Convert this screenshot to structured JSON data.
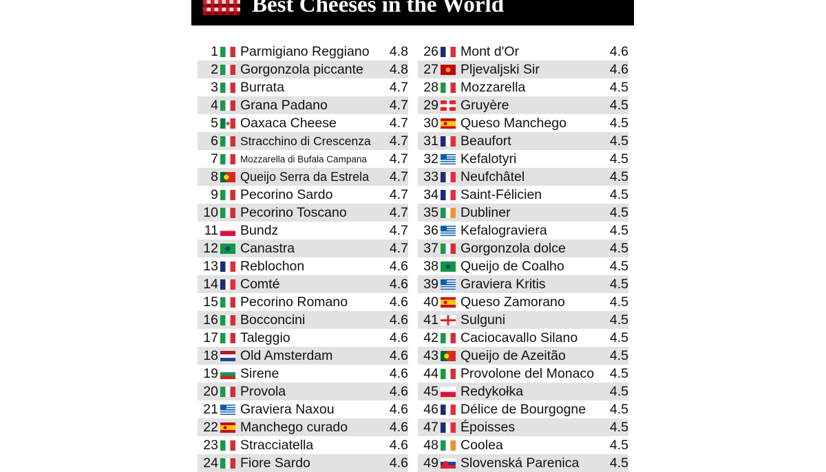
{
  "title": "Best Cheeses in the World",
  "cheeses": [
    {
      "rank": "1",
      "flag": "it",
      "name": "Parmigiano Reggiano",
      "score": "4.8"
    },
    {
      "rank": "2",
      "flag": "it",
      "name": "Gorgonzola piccante",
      "score": "4.8"
    },
    {
      "rank": "3",
      "flag": "it",
      "name": "Burrata",
      "score": "4.7"
    },
    {
      "rank": "4",
      "flag": "it",
      "name": "Grana Padano",
      "score": "4.7"
    },
    {
      "rank": "5",
      "flag": "mx",
      "name": "Oaxaca Cheese",
      "score": "4.7"
    },
    {
      "rank": "6",
      "flag": "it",
      "name": "Stracchino di Crescenza",
      "score": "4.7"
    },
    {
      "rank": "7",
      "flag": "it",
      "name": "Mozzarella di Bufala Campana",
      "score": "4.7"
    },
    {
      "rank": "8",
      "flag": "pt",
      "name": "Queijo Serra da Estrela",
      "score": "4.7"
    },
    {
      "rank": "9",
      "flag": "it",
      "name": "Pecorino Sardo",
      "score": "4.7"
    },
    {
      "rank": "10",
      "flag": "it",
      "name": "Pecorino Toscano",
      "score": "4.7"
    },
    {
      "rank": "11",
      "flag": "pl",
      "name": "Bundz",
      "score": "4.7"
    },
    {
      "rank": "12",
      "flag": "br",
      "name": "Canastra",
      "score": "4.7"
    },
    {
      "rank": "13",
      "flag": "fr",
      "name": "Reblochon",
      "score": "4.6"
    },
    {
      "rank": "14",
      "flag": "fr",
      "name": "Comté",
      "score": "4.6"
    },
    {
      "rank": "15",
      "flag": "it",
      "name": "Pecorino Romano",
      "score": "4.6"
    },
    {
      "rank": "16",
      "flag": "it",
      "name": "Bocconcini",
      "score": "4.6"
    },
    {
      "rank": "17",
      "flag": "it",
      "name": "Taleggio",
      "score": "4.6"
    },
    {
      "rank": "18",
      "flag": "nl",
      "name": "Old Amsterdam",
      "score": "4.6"
    },
    {
      "rank": "19",
      "flag": "bg",
      "name": "Sirene",
      "score": "4.6"
    },
    {
      "rank": "20",
      "flag": "it",
      "name": "Provola",
      "score": "4.6"
    },
    {
      "rank": "21",
      "flag": "gr",
      "name": "Graviera Naxou",
      "score": "4.6"
    },
    {
      "rank": "22",
      "flag": "es",
      "name": "Manchego curado",
      "score": "4.6"
    },
    {
      "rank": "23",
      "flag": "it",
      "name": "Stracciatella",
      "score": "4.6"
    },
    {
      "rank": "24",
      "flag": "it",
      "name": "Fiore Sardo",
      "score": "4.6"
    },
    {
      "rank": "26",
      "flag": "fr",
      "name": "Mont d'Or",
      "score": "4.6"
    },
    {
      "rank": "27",
      "flag": "me",
      "name": "Pljevaljski Sir",
      "score": "4.6"
    },
    {
      "rank": "28",
      "flag": "it",
      "name": "Mozzarella",
      "score": "4.5"
    },
    {
      "rank": "29",
      "flag": "ch",
      "name": "Gruyère",
      "score": "4.5"
    },
    {
      "rank": "30",
      "flag": "es",
      "name": "Queso Manchego",
      "score": "4.5"
    },
    {
      "rank": "31",
      "flag": "fr",
      "name": "Beaufort",
      "score": "4.5"
    },
    {
      "rank": "32",
      "flag": "gr",
      "name": "Kefalotyri",
      "score": "4.5"
    },
    {
      "rank": "33",
      "flag": "fr",
      "name": "Neufchâtel",
      "score": "4.5"
    },
    {
      "rank": "34",
      "flag": "fr",
      "name": "Saint-Félicien",
      "score": "4.5"
    },
    {
      "rank": "35",
      "flag": "ie",
      "name": "Dubliner",
      "score": "4.5"
    },
    {
      "rank": "36",
      "flag": "gr",
      "name": "Kefalograviera",
      "score": "4.5"
    },
    {
      "rank": "37",
      "flag": "it",
      "name": "Gorgonzola dolce",
      "score": "4.5"
    },
    {
      "rank": "38",
      "flag": "br",
      "name": "Queijo de Coalho",
      "score": "4.5"
    },
    {
      "rank": "39",
      "flag": "gr",
      "name": "Graviera Kritis",
      "score": "4.5"
    },
    {
      "rank": "40",
      "flag": "es",
      "name": "Queso Zamorano",
      "score": "4.5"
    },
    {
      "rank": "41",
      "flag": "ge",
      "name": "Sulguni",
      "score": "4.5"
    },
    {
      "rank": "42",
      "flag": "it",
      "name": "Caciocavallo Silano",
      "score": "4.5"
    },
    {
      "rank": "43",
      "flag": "pt",
      "name": "Queijo de Azeitão",
      "score": "4.5"
    },
    {
      "rank": "44",
      "flag": "it",
      "name": "Provolone del Monaco",
      "score": "4.5"
    },
    {
      "rank": "45",
      "flag": "pl",
      "name": "Redykołka",
      "score": "4.5"
    },
    {
      "rank": "46",
      "flag": "fr",
      "name": "Délice de Bourgogne",
      "score": "4.5"
    },
    {
      "rank": "47",
      "flag": "fr",
      "name": "Époisses",
      "score": "4.5"
    },
    {
      "rank": "48",
      "flag": "ie",
      "name": "Coolea",
      "score": "4.5"
    },
    {
      "rank": "49",
      "flag": "sk",
      "name": "Slovenská Parenica",
      "score": "4.5"
    }
  ]
}
